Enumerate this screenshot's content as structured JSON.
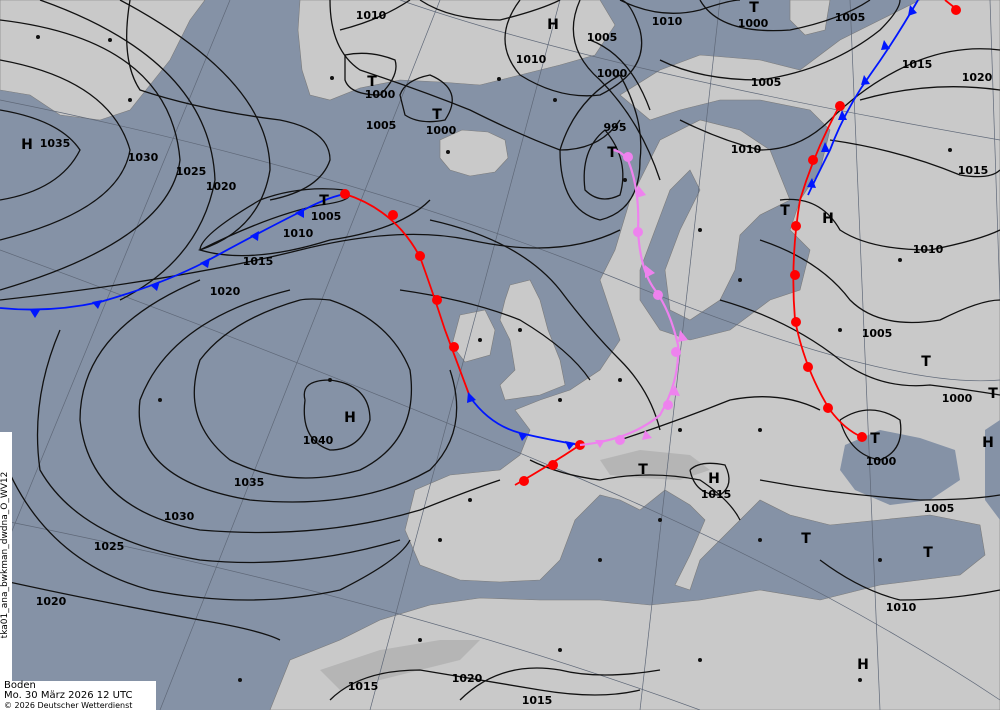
{
  "map": {
    "product_id": "tka01_ana_bwkman_dwdna_O_WV12",
    "caption": {
      "level": "Boden",
      "valid_time": "Mo. 30 März 2026 12 UTC",
      "copyright": "© 2026 Deutscher Wetterdienst"
    },
    "colors": {
      "ocean": "#8592a6",
      "land": "#c9c9c9",
      "cold_front": "#0016ff",
      "warm_front": "#ff0000",
      "occlusion": "#ee82ee",
      "isobar": "#111111"
    },
    "isobar_labels": [
      "1035",
      "1030",
      "1025",
      "1020",
      "1015",
      "1010",
      "1005",
      "1020",
      "1040",
      "1035",
      "1030",
      "1025",
      "1020",
      "1005",
      "1000",
      "1000",
      "1010",
      "1010",
      "1005",
      "1000",
      "995",
      "1010",
      "1000",
      "1005",
      "1005",
      "1010",
      "1015",
      "1020",
      "1015",
      "1010",
      "1005",
      "1000",
      "1000",
      "1015",
      "1005",
      "1010",
      "1020",
      "1015",
      "1015"
    ],
    "pressure_centers": [
      "H",
      "H",
      "H",
      "H",
      "H",
      "H",
      "H",
      "T",
      "T",
      "T",
      "T",
      "T",
      "T",
      "T",
      "T",
      "T",
      "T",
      "T",
      "T"
    ]
  }
}
